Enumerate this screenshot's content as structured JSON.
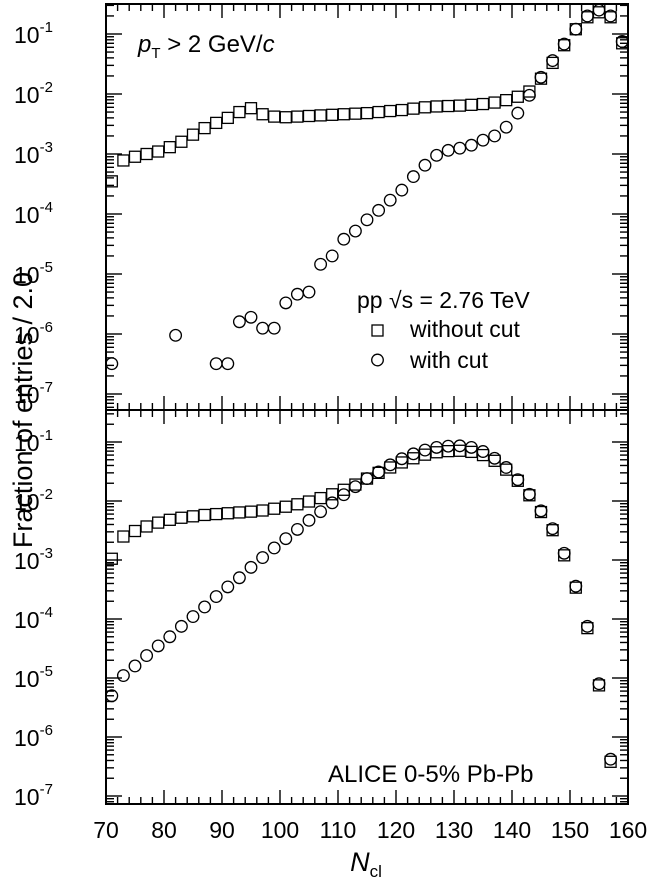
{
  "figure": {
    "ylabel": "Fraction of entries / 2.0",
    "xlabel_main": "N",
    "xlabel_sub": "cl",
    "xticks": [
      "70",
      "80",
      "90",
      "100",
      "110",
      "120",
      "130",
      "140",
      "150",
      "160"
    ]
  },
  "chart_data": [
    {
      "type": "scatter",
      "panel": "top",
      "yscale": "log",
      "xlim": [
        70,
        160
      ],
      "ylim": [
        7e-08,
        0.25
      ],
      "annotation_prefix": "p",
      "annotation_sub": "T",
      "annotation_mid": " > 2 GeV/",
      "annotation_unit": "c",
      "legend_title": "pp √s = 2.76 TeV",
      "legend_placement": "center-right",
      "ytick_exponents": [
        "-1",
        "-2",
        "-3",
        "-4",
        "-5",
        "-6",
        "-7"
      ],
      "series": [
        {
          "name": "without cut",
          "marker": "square",
          "points": [
            [
              71,
              0.00035
            ],
            [
              73,
              0.00078
            ],
            [
              75,
              0.0009
            ],
            [
              77,
              0.001
            ],
            [
              79,
              0.0011
            ],
            [
              81,
              0.0013
            ],
            [
              83,
              0.0016
            ],
            [
              85,
              0.0021
            ],
            [
              87,
              0.0027
            ],
            [
              89,
              0.0033
            ],
            [
              91,
              0.004
            ],
            [
              93,
              0.005
            ],
            [
              95,
              0.0058
            ],
            [
              97,
              0.0046
            ],
            [
              99,
              0.0042
            ],
            [
              101,
              0.0041
            ],
            [
              103,
              0.0042
            ],
            [
              105,
              0.0043
            ],
            [
              107,
              0.0044
            ],
            [
              109,
              0.0045
            ],
            [
              111,
              0.0046
            ],
            [
              113,
              0.0047
            ],
            [
              115,
              0.0048
            ],
            [
              117,
              0.005
            ],
            [
              119,
              0.0052
            ],
            [
              121,
              0.0054
            ],
            [
              123,
              0.0057
            ],
            [
              125,
              0.006
            ],
            [
              127,
              0.0062
            ],
            [
              129,
              0.0063
            ],
            [
              131,
              0.0064
            ],
            [
              133,
              0.0066
            ],
            [
              135,
              0.0068
            ],
            [
              137,
              0.0072
            ],
            [
              139,
              0.0079
            ],
            [
              141,
              0.009
            ],
            [
              143,
              0.011
            ],
            [
              145,
              0.018
            ],
            [
              147,
              0.033
            ],
            [
              149,
              0.065
            ],
            [
              151,
              0.12
            ],
            [
              153,
              0.19
            ],
            [
              155,
              0.23
            ],
            [
              157,
              0.19
            ],
            [
              159,
              0.07
            ]
          ]
        },
        {
          "name": "with cut",
          "marker": "circle",
          "points": [
            [
              71,
              3.2e-07
            ],
            [
              82,
              9.5e-07
            ],
            [
              89,
              3.2e-07
            ],
            [
              91,
              3.2e-07
            ],
            [
              93,
              1.6e-06
            ],
            [
              95,
              1.9e-06
            ],
            [
              97,
              1.25e-06
            ],
            [
              99,
              1.25e-06
            ],
            [
              101,
              3.3e-06
            ],
            [
              103,
              4.6e-06
            ],
            [
              105,
              5e-06
            ],
            [
              107,
              1.45e-05
            ],
            [
              109,
              2e-05
            ],
            [
              111,
              3.8e-05
            ],
            [
              113,
              5.2e-05
            ],
            [
              115,
              8e-05
            ],
            [
              117,
              0.000115
            ],
            [
              119,
              0.00017
            ],
            [
              121,
              0.00025
            ],
            [
              123,
              0.00042
            ],
            [
              125,
              0.00065
            ],
            [
              127,
              0.00095
            ],
            [
              129,
              0.00115
            ],
            [
              131,
              0.00125
            ],
            [
              133,
              0.0014
            ],
            [
              135,
              0.0017
            ],
            [
              137,
              0.002
            ],
            [
              139,
              0.0028
            ],
            [
              141,
              0.0048
            ],
            [
              143,
              0.0095
            ],
            [
              145,
              0.019
            ],
            [
              147,
              0.036
            ],
            [
              149,
              0.068
            ],
            [
              151,
              0.12
            ],
            [
              153,
              0.2
            ],
            [
              155,
              0.25
            ],
            [
              157,
              0.2
            ],
            [
              159,
              0.075
            ]
          ]
        }
      ]
    },
    {
      "type": "scatter",
      "panel": "bottom",
      "yscale": "log",
      "xlim": [
        70,
        160
      ],
      "ylim": [
        7e-08,
        0.25
      ],
      "annotation": "ALICE 0-5% Pb-Pb",
      "ytick_exponents": [
        "-1",
        "-2",
        "-3",
        "-4",
        "-5",
        "-6",
        "-7"
      ],
      "series": [
        {
          "name": "without cut",
          "marker": "square",
          "points": [
            [
              71,
              0.00105
            ],
            [
              73,
              0.0025
            ],
            [
              75,
              0.0031
            ],
            [
              77,
              0.0037
            ],
            [
              79,
              0.0043
            ],
            [
              81,
              0.0048
            ],
            [
              83,
              0.0052
            ],
            [
              85,
              0.0055
            ],
            [
              87,
              0.0058
            ],
            [
              89,
              0.006
            ],
            [
              91,
              0.0062
            ],
            [
              93,
              0.0064
            ],
            [
              95,
              0.0066
            ],
            [
              97,
              0.0069
            ],
            [
              99,
              0.0074
            ],
            [
              101,
              0.008
            ],
            [
              103,
              0.0088
            ],
            [
              105,
              0.0098
            ],
            [
              107,
              0.0112
            ],
            [
              109,
              0.013
            ],
            [
              111,
              0.0155
            ],
            [
              113,
              0.019
            ],
            [
              115,
              0.024
            ],
            [
              117,
              0.03
            ],
            [
              119,
              0.037
            ],
            [
              121,
              0.045
            ],
            [
              123,
              0.053
            ],
            [
              125,
              0.061
            ],
            [
              127,
              0.067
            ],
            [
              129,
              0.07
            ],
            [
              131,
              0.071
            ],
            [
              133,
              0.068
            ],
            [
              135,
              0.06
            ],
            [
              137,
              0.048
            ],
            [
              139,
              0.034
            ],
            [
              141,
              0.022
            ],
            [
              143,
              0.0125
            ],
            [
              145,
              0.0065
            ],
            [
              147,
              0.0032
            ],
            [
              149,
              0.0012
            ],
            [
              151,
              0.00034
            ],
            [
              153,
              7e-05
            ],
            [
              155,
              7.5e-06
            ],
            [
              157,
              3.8e-07
            ]
          ]
        },
        {
          "name": "with cut",
          "marker": "circle",
          "points": [
            [
              71,
              5e-06
            ],
            [
              73,
              1.1e-05
            ],
            [
              75,
              1.6e-05
            ],
            [
              77,
              2.4e-05
            ],
            [
              79,
              3.5e-05
            ],
            [
              81,
              5e-05
            ],
            [
              83,
              7.5e-05
            ],
            [
              85,
              0.00011
            ],
            [
              87,
              0.00016
            ],
            [
              89,
              0.00024
            ],
            [
              91,
              0.00035
            ],
            [
              93,
              0.0005
            ],
            [
              95,
              0.00075
            ],
            [
              97,
              0.0011
            ],
            [
              99,
              0.0016
            ],
            [
              101,
              0.0023
            ],
            [
              103,
              0.0033
            ],
            [
              105,
              0.0047
            ],
            [
              107,
              0.0066
            ],
            [
              109,
              0.0093
            ],
            [
              111,
              0.0128
            ],
            [
              113,
              0.0175
            ],
            [
              115,
              0.024
            ],
            [
              117,
              0.031
            ],
            [
              119,
              0.041
            ],
            [
              121,
              0.052
            ],
            [
              123,
              0.063
            ],
            [
              125,
              0.073
            ],
            [
              127,
              0.081
            ],
            [
              129,
              0.085
            ],
            [
              131,
              0.086
            ],
            [
              133,
              0.081
            ],
            [
              135,
              0.069
            ],
            [
              137,
              0.053
            ],
            [
              139,
              0.037
            ],
            [
              141,
              0.023
            ],
            [
              143,
              0.013
            ],
            [
              145,
              0.0068
            ],
            [
              147,
              0.0034
            ],
            [
              149,
              0.0013
            ],
            [
              151,
              0.00036
            ],
            [
              153,
              7.5e-05
            ],
            [
              155,
              8e-06
            ],
            [
              157,
              4.2e-07
            ]
          ]
        }
      ]
    }
  ]
}
